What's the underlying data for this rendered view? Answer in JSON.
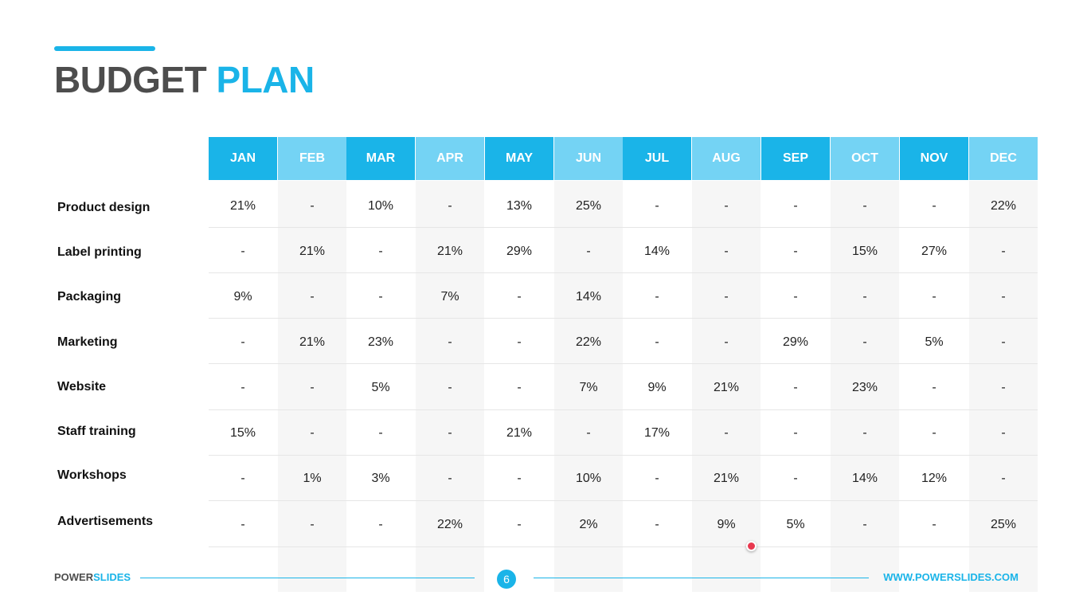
{
  "title": {
    "part1": "BUDGET",
    "part2": "PLAN"
  },
  "colors": {
    "accent": "#1ab4e8",
    "header_light": "#74d3f4",
    "text_dark": "#4d4d4d",
    "marker": "#e8384f"
  },
  "months": [
    "JAN",
    "FEB",
    "MAR",
    "APR",
    "MAY",
    "JUN",
    "JUL",
    "AUG",
    "SEP",
    "OCT",
    "NOV",
    "DEC"
  ],
  "rows": [
    {
      "label": "Product design",
      "values": [
        "21%",
        "-",
        "10%",
        "-",
        "13%",
        "25%",
        "-",
        "-",
        "-",
        "-",
        "-",
        "22%"
      ]
    },
    {
      "label": "Label printing",
      "values": [
        "-",
        "21%",
        "-",
        "21%",
        "29%",
        "-",
        "14%",
        "-",
        "-",
        "15%",
        "27%",
        "-"
      ]
    },
    {
      "label": "Packaging",
      "values": [
        "9%",
        "-",
        "-",
        "7%",
        "-",
        "14%",
        "-",
        "-",
        "-",
        "-",
        "-",
        "-"
      ]
    },
    {
      "label": "Marketing",
      "values": [
        "-",
        "21%",
        "23%",
        "-",
        "-",
        "22%",
        "-",
        "-",
        "29%",
        "-",
        "5%",
        "-"
      ]
    },
    {
      "label": "Website",
      "values": [
        "-",
        "-",
        "5%",
        "-",
        "-",
        "7%",
        "9%",
        "21%",
        "-",
        "23%",
        "-",
        "-"
      ]
    },
    {
      "label": "Staff training",
      "values": [
        "15%",
        "-",
        "-",
        "-",
        "21%",
        "-",
        "17%",
        "-",
        "-",
        "-",
        "-",
        "-"
      ]
    },
    {
      "label": "Workshops",
      "values": [
        "-",
        "1%",
        "3%",
        "-",
        "-",
        "10%",
        "-",
        "21%",
        "-",
        "14%",
        "12%",
        "-"
      ]
    },
    {
      "label": "Advertisements",
      "values": [
        "-",
        "-",
        "-",
        "22%",
        "-",
        "2%",
        "-",
        "9%",
        "5%",
        "-",
        "-",
        "25%"
      ]
    }
  ],
  "footer": {
    "brand_part1": "POWER",
    "brand_part2": "SLIDES",
    "page_number": "6",
    "url": "WWW.POWERSLIDES.COM"
  }
}
